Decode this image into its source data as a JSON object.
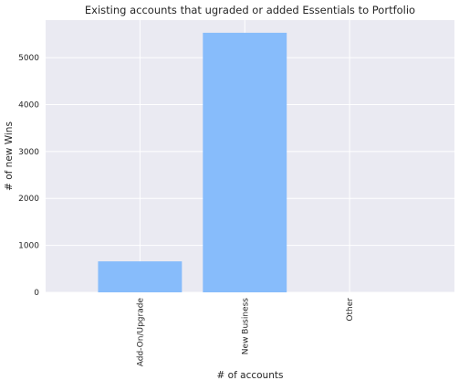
{
  "chart_data": {
    "type": "bar",
    "title": "Existing accounts that ugraded or added Essentials to Portfolio",
    "xlabel": "# of accounts",
    "ylabel": "# of new Wins",
    "categories": [
      "Add-On/Upgrade",
      "New Business",
      "Other"
    ],
    "values": [
      660,
      5530,
      0
    ],
    "ylim": [
      0,
      5800
    ],
    "yticks": [
      0,
      1000,
      2000,
      3000,
      4000,
      5000
    ],
    "grid": true,
    "legend": "none",
    "colors": {
      "bar": "#87bcfb",
      "plot_background": "#eaeaf2",
      "grid": "#ffffff"
    }
  }
}
